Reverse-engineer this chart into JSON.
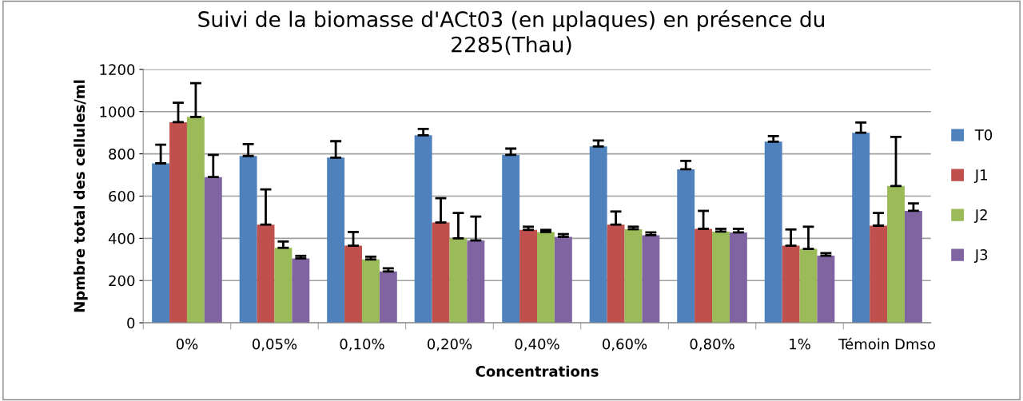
{
  "chart_data": {
    "type": "bar",
    "title": "Suivi de la biomasse d'ACt03 (en µplaques) en présence du\n2285(Thau)",
    "xlabel": "Concentrations",
    "ylabel": "Npmbre total des cellules/ml",
    "categories": [
      "0%",
      "0,05%",
      "0,10%",
      "0,20%",
      "0,40%",
      "0,60%",
      "0,80%",
      "1%",
      "Témoin Dmso"
    ],
    "series": [
      {
        "name": "T0",
        "color": "#4f81bd",
        "values": [
          755,
          790,
          782,
          888,
          795,
          835,
          727,
          858,
          900
        ],
        "errors": [
          [
            755,
            843
          ],
          [
            790,
            846
          ],
          [
            782,
            860
          ],
          [
            888,
            918
          ],
          [
            795,
            825
          ],
          [
            835,
            863
          ],
          [
            727,
            767
          ],
          [
            858,
            884
          ],
          [
            900,
            948
          ]
        ]
      },
      {
        "name": "J1",
        "color": "#c0504d",
        "values": [
          950,
          465,
          365,
          475,
          440,
          465,
          445,
          365,
          460
        ],
        "errors": [
          [
            950,
            1042
          ],
          [
            465,
            632
          ],
          [
            365,
            430
          ],
          [
            475,
            590
          ],
          [
            440,
            455
          ],
          [
            465,
            527
          ],
          [
            445,
            530
          ],
          [
            365,
            442
          ],
          [
            460,
            520
          ]
        ]
      },
      {
        "name": "J2",
        "color": "#9bbb59",
        "values": [
          975,
          355,
          300,
          400,
          430,
          443,
          432,
          350,
          648
        ],
        "errors": [
          [
            975,
            1135
          ],
          [
            355,
            385
          ],
          [
            300,
            313
          ],
          [
            400,
            520
          ],
          [
            430,
            440
          ],
          [
            443,
            455
          ],
          [
            432,
            445
          ],
          [
            350,
            455
          ],
          [
            648,
            880
          ]
        ]
      },
      {
        "name": "J3",
        "color": "#8064a2",
        "values": [
          690,
          305,
          243,
          390,
          407,
          415,
          428,
          318,
          530
        ],
        "errors": [
          [
            690,
            795
          ],
          [
            305,
            317
          ],
          [
            243,
            258
          ],
          [
            390,
            503
          ],
          [
            407,
            420
          ],
          [
            415,
            428
          ],
          [
            428,
            445
          ],
          [
            318,
            330
          ],
          [
            530,
            565
          ]
        ]
      }
    ],
    "ylim": [
      0,
      1200
    ],
    "yticks": [
      0,
      200,
      400,
      600,
      800,
      1000,
      1200
    ],
    "grid": "y",
    "legend": "right"
  }
}
